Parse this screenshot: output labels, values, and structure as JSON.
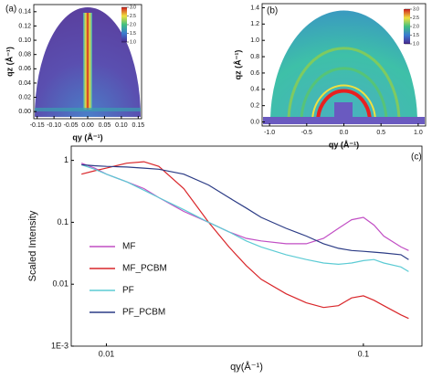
{
  "chart_data": [
    {
      "type": "image",
      "panel_label": "(a)",
      "x_label": "qy (Å⁻¹)",
      "y_label": "qz (Å⁻¹)",
      "xlim": [
        -0.16,
        0.16
      ],
      "ylim": [
        -0.01,
        0.15
      ],
      "xticks": [
        -0.15,
        {
          "value": -0.1,
          "label": "-0.10"
        },
        -0.05,
        {
          "value": 0,
          "label": "0.00"
        },
        0.05,
        {
          "value": 0.1,
          "label": "0.10"
        },
        0.15
      ],
      "yticks": [
        {
          "value": 0,
          "label": "0.00"
        },
        0.02,
        0.04,
        0.06,
        0.08,
        {
          "value": 0.1,
          "label": "0.10"
        },
        0.12,
        0.14
      ],
      "clim": [
        1,
        3
      ],
      "cticks": [
        {
          "value": 1,
          "label": "1.0"
        },
        1.5,
        {
          "value": 2,
          "label": "2.0"
        },
        2.5,
        {
          "value": 3,
          "label": "3.0"
        }
      ]
    },
    {
      "type": "image",
      "panel_label": "(b)",
      "x_label": "qy (Å⁻¹)",
      "y_label": "qz (Å⁻¹)",
      "xlim": [
        -1.1,
        1.1
      ],
      "ylim": [
        -0.05,
        1.45
      ],
      "xticks": [
        {
          "value": -1,
          "label": "-1.0"
        },
        -0.5,
        {
          "value": 0,
          "label": "0.0"
        },
        0.5,
        {
          "value": 1,
          "label": "1.0"
        }
      ],
      "yticks": [
        {
          "value": 0,
          "label": "0.0"
        },
        0.2,
        0.4,
        0.6,
        0.8,
        {
          "value": 1,
          "label": "1.0"
        },
        1.2,
        1.4
      ],
      "clim": [
        1,
        3
      ],
      "cticks": [
        {
          "value": 1,
          "label": "1.0"
        },
        1.5,
        {
          "value": 2,
          "label": "2.0"
        },
        2.5,
        {
          "value": 3,
          "label": "3.0"
        }
      ]
    },
    {
      "type": "line",
      "panel_label": "(c)",
      "x_label": "qy(Å⁻¹)",
      "y_label": "Scaled Intensity",
      "log_x": true,
      "log_y": true,
      "xlim": [
        0.0073,
        0.169
      ],
      "ylim": [
        0.001,
        1.7
      ],
      "xticks": [
        0.01,
        0.1
      ],
      "yticks": [
        {
          "value": 0.001,
          "label": "1E-3"
        },
        0.01,
        0.1,
        1
      ],
      "x": [
        0.008,
        0.009,
        0.01,
        0.012,
        0.014,
        0.016,
        0.02,
        0.025,
        0.03,
        0.035,
        0.04,
        0.05,
        0.06,
        0.07,
        0.08,
        0.09,
        0.1,
        0.11,
        0.12,
        0.14,
        0.15
      ],
      "series": [
        {
          "name": "MF",
          "color": "#c14ec4",
          "values": [
            0.9,
            0.75,
            0.6,
            0.45,
            0.35,
            0.25,
            0.15,
            0.1,
            0.07,
            0.055,
            0.05,
            0.045,
            0.045,
            0.055,
            0.08,
            0.11,
            0.12,
            0.09,
            0.06,
            0.04,
            0.035
          ]
        },
        {
          "name": "MF_PCBM",
          "color": "#d9262a",
          "values": [
            0.6,
            0.68,
            0.75,
            0.9,
            0.95,
            0.8,
            0.35,
            0.1,
            0.04,
            0.02,
            0.012,
            0.007,
            0.005,
            0.0042,
            0.0045,
            0.006,
            0.0065,
            0.0055,
            0.0045,
            0.0032,
            0.0028
          ]
        },
        {
          "name": "PF",
          "color": "#5ccbd4",
          "values": [
            0.85,
            0.72,
            0.6,
            0.45,
            0.33,
            0.25,
            0.16,
            0.1,
            0.07,
            0.05,
            0.04,
            0.03,
            0.025,
            0.022,
            0.021,
            0.022,
            0.024,
            0.025,
            0.022,
            0.019,
            0.016
          ]
        },
        {
          "name": "PF_PCBM",
          "color": "#2b3b85",
          "values": [
            0.85,
            0.82,
            0.8,
            0.78,
            0.75,
            0.72,
            0.6,
            0.4,
            0.25,
            0.17,
            0.12,
            0.08,
            0.06,
            0.045,
            0.038,
            0.035,
            0.034,
            0.033,
            0.032,
            0.03,
            0.025
          ]
        }
      ]
    }
  ]
}
